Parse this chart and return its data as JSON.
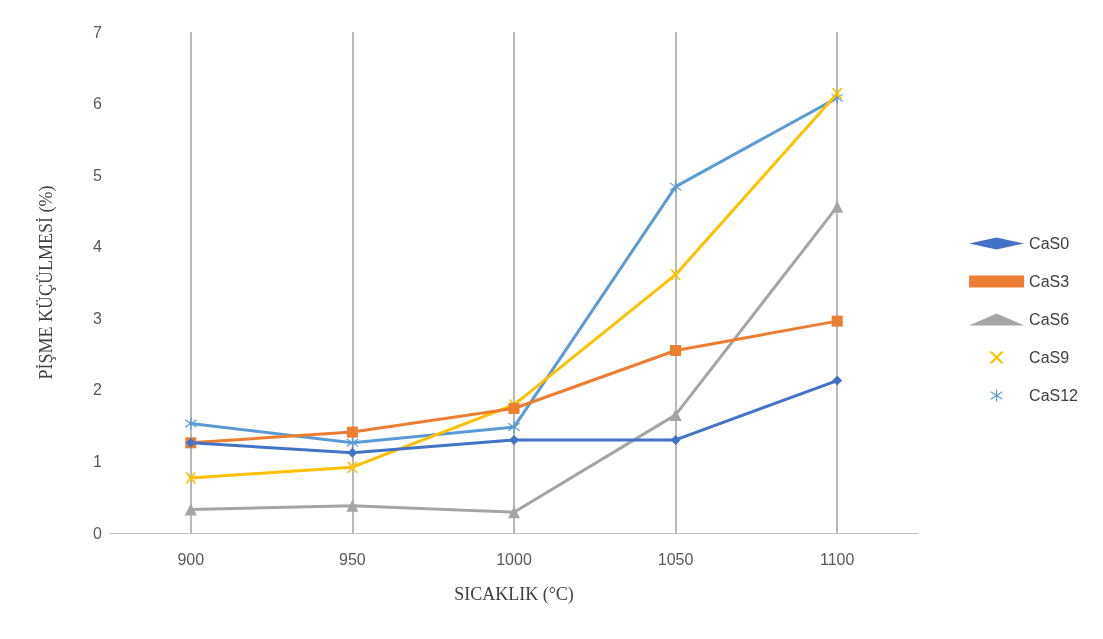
{
  "chart_data": {
    "type": "line",
    "xlabel": "SICAKLIK (°C)",
    "ylabel": "PİŞME KÜÇÜLMESİ (%)",
    "categories": [
      "900",
      "950",
      "1000",
      "1050",
      "1100"
    ],
    "ylim": [
      0,
      7
    ],
    "yticks": [
      0,
      1,
      2,
      3,
      4,
      5,
      6,
      7
    ],
    "grid": "x",
    "legend": "right",
    "line_style": "solid",
    "series": [
      {
        "name": "CaS0",
        "color": "#4472c4",
        "marker": "diamond",
        "values": [
          1.26,
          1.12,
          1.3,
          1.3,
          2.13
        ]
      },
      {
        "name": "CaS3",
        "color": "#ed7d31",
        "marker": "square",
        "values": [
          1.26,
          1.41,
          1.74,
          2.55,
          2.96
        ]
      },
      {
        "name": "CaS6",
        "color": "#a5a5a5",
        "marker": "triangle",
        "values": [
          0.33,
          0.38,
          0.29,
          1.65,
          4.56
        ]
      },
      {
        "name": "CaS9",
        "color": "#ffc000",
        "marker": "cross",
        "values": [
          0.77,
          0.92,
          1.79,
          3.61,
          6.14
        ]
      },
      {
        "name": "CaS12",
        "color": "#5b9bd5",
        "marker": "star",
        "values": [
          1.53,
          1.26,
          1.48,
          4.84,
          6.08
        ]
      }
    ]
  }
}
